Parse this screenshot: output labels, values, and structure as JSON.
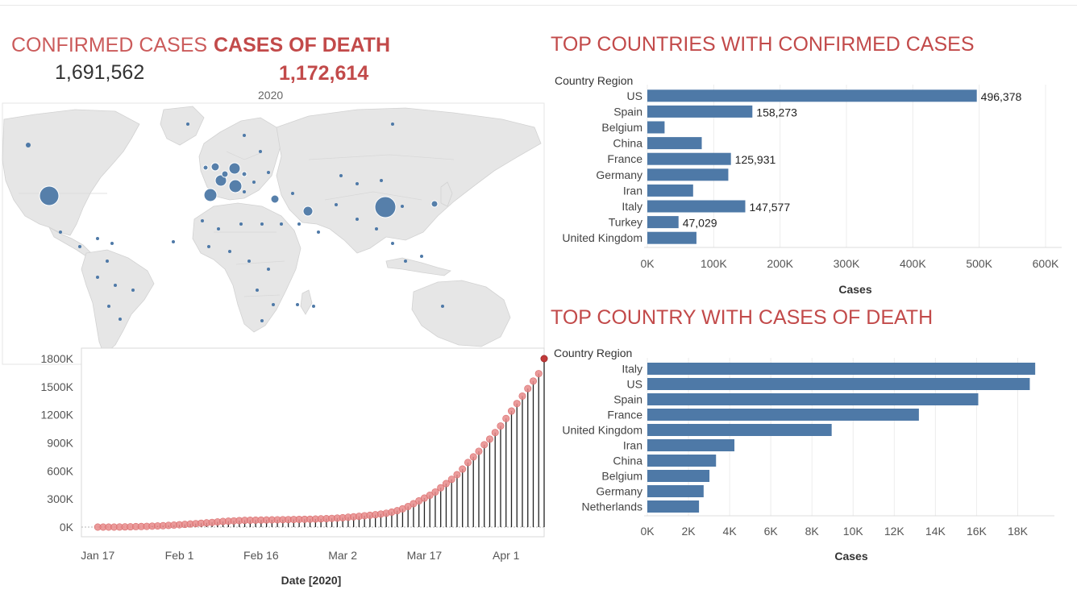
{
  "kpis": {
    "confirmed_title": "CONFIRMED CASES",
    "confirmed_value": "1,691,562",
    "death_title": "CASES OF DEATH",
    "death_value": "1,172,614"
  },
  "map": {
    "year_label": "2020",
    "colors": {
      "land": "#e6e6e6",
      "border": "#cfcfcf",
      "bubble": "#4e79a7"
    },
    "bubbles": [
      {
        "name": "US",
        "size": "large"
      },
      {
        "name": "China",
        "size": "large"
      },
      {
        "name": "Italy",
        "size": "medium"
      },
      {
        "name": "Spain",
        "size": "medium"
      },
      {
        "name": "France",
        "size": "medium"
      },
      {
        "name": "Germany",
        "size": "medium"
      },
      {
        "name": "United Kingdom",
        "size": "small"
      },
      {
        "name": "Iran",
        "size": "small"
      },
      {
        "name": "Turkey",
        "size": "small"
      },
      {
        "name": "Japan",
        "size": "small"
      }
    ]
  },
  "colors": {
    "bar": "#4e79a7",
    "accent": "#c24a4a",
    "lollipop": "#e88a8a",
    "grid": "#ececec"
  },
  "chart_data": [
    {
      "id": "timeline",
      "type": "line",
      "title": "",
      "xlabel": "Date [2020]",
      "ylabel": "",
      "ylim": [
        0,
        1800000
      ],
      "y_ticks": [
        "0K",
        "300K",
        "600K",
        "900K",
        "1200K",
        "1500K",
        "1800K"
      ],
      "y_tick_values": [
        0,
        300000,
        600000,
        900000,
        1200000,
        1500000,
        1800000
      ],
      "x_ticks": [
        "Jan 17",
        "Feb 1",
        "Feb 16",
        "Mar 2",
        "Mar 17",
        "Apr 1"
      ],
      "x_tick_days": [
        0,
        15,
        30,
        45,
        60,
        75
      ],
      "x_range_days": [
        -3,
        82
      ],
      "style": "lollipop",
      "start": "Jan 17",
      "values": [
        0,
        0,
        0,
        0,
        1000,
        2000,
        3000,
        5000,
        6000,
        8000,
        10000,
        12000,
        15000,
        18000,
        21000,
        25000,
        29000,
        33000,
        37000,
        41000,
        45000,
        50000,
        55000,
        60000,
        63000,
        66000,
        69000,
        72000,
        73000,
        74000,
        75000,
        76000,
        77000,
        78000,
        79000,
        80000,
        81000,
        82000,
        83000,
        84000,
        86000,
        88000,
        90000,
        93000,
        96000,
        100000,
        105000,
        110000,
        115000,
        121000,
        126000,
        132000,
        139000,
        148000,
        160000,
        175000,
        195000,
        220000,
        250000,
        280000,
        310000,
        340000,
        375000,
        420000,
        465000,
        510000,
        560000,
        620000,
        690000,
        750000,
        810000,
        880000,
        940000,
        1010000,
        1080000,
        1160000,
        1240000,
        1320000,
        1400000,
        1480000,
        1560000,
        1640000,
        1800000
      ]
    },
    {
      "id": "confirmed-bars",
      "type": "bar",
      "orientation": "horizontal",
      "title": "TOP COUNTRIES WITH CONFIRMED CASES",
      "category_header": "Country Region",
      "xlabel": "Cases",
      "ylabel": "Country Region",
      "xlim": [
        0,
        600000
      ],
      "x_ticks": [
        "0K",
        "100K",
        "200K",
        "300K",
        "400K",
        "500K",
        "600K"
      ],
      "x_tick_values": [
        0,
        100000,
        200000,
        300000,
        400000,
        500000,
        600000
      ],
      "categories": [
        "US",
        "Spain",
        "Belgium",
        "China",
        "France",
        "Germany",
        "Iran",
        "Italy",
        "Turkey",
        "United Kingdom"
      ],
      "values": [
        496378,
        158273,
        26000,
        82000,
        125931,
        122000,
        69000,
        147577,
        47029,
        74000
      ],
      "data_labels": [
        "496,378",
        "158,273",
        "",
        "",
        "125,931",
        "",
        "",
        "147,577",
        "47,029",
        ""
      ]
    },
    {
      "id": "death-bars",
      "type": "bar",
      "orientation": "horizontal",
      "title": "TOP COUNTRY WITH CASES OF DEATH",
      "category_header": "Country Region",
      "xlabel": "Cases",
      "ylabel": "Country Region",
      "xlim": [
        0,
        19000
      ],
      "x_ticks": [
        "0K",
        "2K",
        "4K",
        "6K",
        "8K",
        "10K",
        "12K",
        "14K",
        "16K",
        "18K"
      ],
      "x_tick_values": [
        0,
        2000,
        4000,
        6000,
        8000,
        10000,
        12000,
        14000,
        16000,
        18000
      ],
      "categories": [
        "Italy",
        "US",
        "Spain",
        "France",
        "United Kingdom",
        "Iran",
        "China",
        "Belgium",
        "Germany",
        "Netherlands"
      ],
      "values": [
        18849,
        18586,
        16081,
        13197,
        8958,
        4232,
        3339,
        3019,
        2736,
        2511
      ]
    }
  ]
}
